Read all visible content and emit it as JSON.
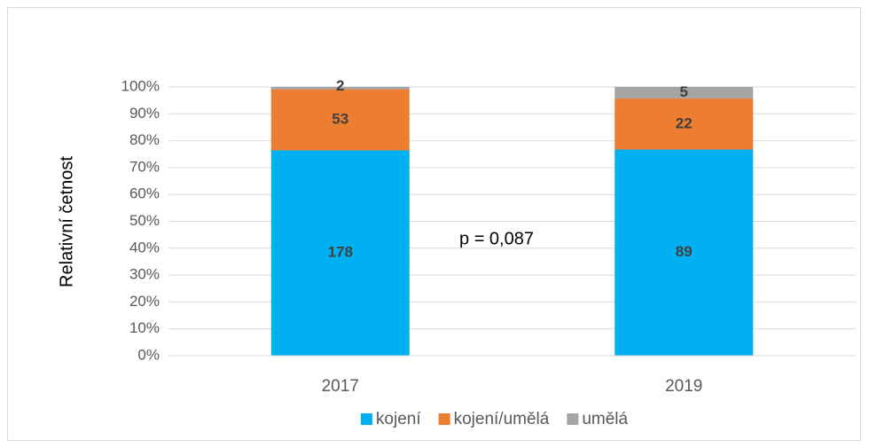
{
  "chart_data": {
    "type": "bar",
    "stacking": "percent",
    "y_label": "Relativní četnost",
    "annotation": "p = 0,087",
    "categories": [
      "2017",
      "2019"
    ],
    "series": [
      {
        "name": "kojení",
        "color": "#00b0f0",
        "values": [
          178,
          89
        ]
      },
      {
        "name": "kojení/umělá",
        "color": "#ed7d31",
        "values": [
          53,
          22
        ]
      },
      {
        "name": "umělá",
        "color": "#a5a5a5",
        "values": [
          2,
          5
        ]
      }
    ],
    "ylim": [
      0,
      100
    ],
    "yticks": [
      {
        "value": 0,
        "label": "0%"
      },
      {
        "value": 10,
        "label": "10%"
      },
      {
        "value": 20,
        "label": "20%"
      },
      {
        "value": 30,
        "label": "30%"
      },
      {
        "value": 40,
        "label": "40%"
      },
      {
        "value": 50,
        "label": "50%"
      },
      {
        "value": 60,
        "label": "60%"
      },
      {
        "value": 70,
        "label": "70%"
      },
      {
        "value": 80,
        "label": "80%"
      },
      {
        "value": 90,
        "label": "90%"
      },
      {
        "value": 100,
        "label": "100%"
      }
    ],
    "grid": true,
    "legend": "bottom"
  }
}
